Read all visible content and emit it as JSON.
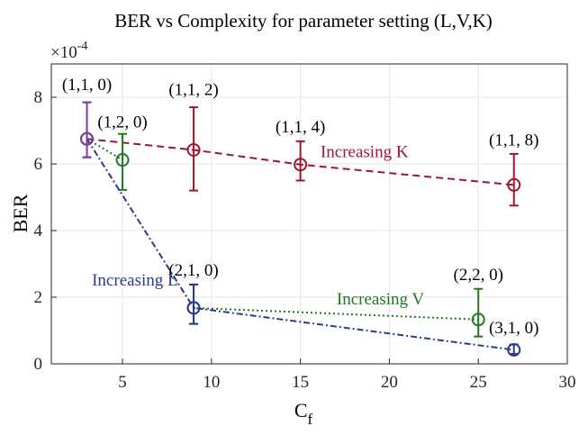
{
  "chart_data": {
    "type": "line",
    "title": "BER vs Complexity for parameter setting (L,V,K)",
    "xlabel_main": "C",
    "xlabel_sub": "f",
    "ylabel": "BER",
    "y_multiplier": "×10",
    "y_multiplier_exp": "-4",
    "xlim": [
      1,
      30
    ],
    "ylim": [
      0,
      9
    ],
    "x_ticks": [
      5,
      10,
      15,
      20,
      25,
      30
    ],
    "y_ticks": [
      0,
      2,
      4,
      6,
      8
    ],
    "grid": true,
    "series": [
      {
        "color": "#a2142f",
        "dash": "8,5",
        "x": [
          3,
          9,
          15,
          27
        ],
        "y": [
          6.75,
          6.42,
          5.98,
          5.37
        ],
        "err_low": [
          6.2,
          5.2,
          5.5,
          4.75
        ],
        "err_high": [
          7.85,
          7.7,
          6.68,
          6.3
        ],
        "point_labels": [
          "(1,1, 0)",
          "(1,1, 2)",
          "(1,1, 4)",
          "(1,1, 8)"
        ]
      },
      {
        "color": "#1f7a1f",
        "dash": "2,3",
        "x": [
          3,
          5
        ],
        "y": [
          6.75,
          6.12
        ],
        "err_low": [
          6.2,
          5.22
        ],
        "err_high": [
          7.85,
          6.9
        ],
        "point_labels": [
          "",
          "(1,2, 0)"
        ]
      },
      {
        "color": "#1f7a1f",
        "dash": "2,3",
        "x": [
          9,
          25
        ],
        "y": [
          1.68,
          1.33
        ],
        "err_low": [
          1.2,
          0.82
        ],
        "err_high": [
          2.38,
          2.25
        ],
        "point_labels": [
          "",
          "(2,2, 0)"
        ]
      },
      {
        "color": "#2c3a8c",
        "dash": "7,3,2,3",
        "x": [
          3,
          9,
          27
        ],
        "y": [
          6.75,
          1.68,
          0.42
        ],
        "err_low": [
          6.2,
          1.2,
          0.3
        ],
        "err_high": [
          7.85,
          2.38,
          0.58
        ],
        "point_labels": [
          "",
          "(2,1, 0)",
          "(3,1, 0)"
        ]
      },
      {
        "color": "#7e3fa1",
        "dash": "",
        "x": [
          3
        ],
        "y": [
          6.75
        ],
        "err_low": [
          6.2
        ],
        "err_high": [
          7.85
        ],
        "point_labels": [
          ""
        ]
      }
    ],
    "annotations": [
      {
        "text": "Increasing K",
        "x": 18.6,
        "y": 6.2,
        "color": "#a2142f"
      },
      {
        "text": "Increasing V",
        "x": 19.5,
        "y": 1.78,
        "color": "#1f7a1f"
      },
      {
        "text": "Increasing L",
        "x": 5.7,
        "y": 2.35,
        "color": "#2c3a8c"
      }
    ],
    "label_anchors": [
      {
        "text": "(1,1, 0)",
        "x": 3,
        "y": 8.22
      },
      {
        "text": "(1,2, 0)",
        "x": 5,
        "y": 7.1
      },
      {
        "text": "(1,1, 2)",
        "x": 9,
        "y": 8.07
      },
      {
        "text": "(1,1, 4)",
        "x": 15,
        "y": 6.95
      },
      {
        "text": "(1,1, 8)",
        "x": 27,
        "y": 6.55
      },
      {
        "text": "(2,1, 0)",
        "x": 9,
        "y": 2.65
      },
      {
        "text": "(2,2, 0)",
        "x": 25,
        "y": 2.52
      },
      {
        "text": "(3,1, 0)",
        "x": 27,
        "y": 0.92
      }
    ]
  }
}
